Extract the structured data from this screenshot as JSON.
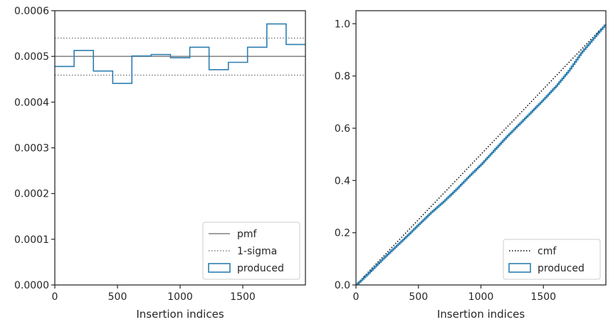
{
  "chart_data": [
    {
      "type": "histogram-step",
      "xlabel": "Insertion indices",
      "ylabel": "",
      "xlim": [
        0,
        2000
      ],
      "ylim": [
        0,
        0.0006
      ],
      "x_ticks": [
        0,
        500,
        1000,
        1500
      ],
      "x_tick_labels": [
        "0",
        "500",
        "1000",
        "1500"
      ],
      "y_ticks": [
        0,
        0.0001,
        0.0002,
        0.0003,
        0.0004,
        0.0005,
        0.0006
      ],
      "y_tick_labels": [
        "0.0000",
        "0.0001",
        "0.0002",
        "0.0003",
        "0.0004",
        "0.0005",
        "0.0006"
      ],
      "legend_position": "bottom-right",
      "reference_lines": [
        {
          "name": "pmf",
          "y": 0.0005,
          "style": "solid",
          "color": "#808080"
        },
        {
          "name": "1-sigma",
          "y": 0.00054,
          "style": "dotted",
          "color": "#808080"
        },
        {
          "name": "1-sigma",
          "y": 0.000459,
          "style": "dotted",
          "color": "#808080",
          "legend": false
        }
      ],
      "series": [
        {
          "name": "produced",
          "color": "#2f7fb0",
          "bin_edges": [
            0,
            154,
            308,
            462,
            615,
            769,
            923,
            1077,
            1231,
            1385,
            1538,
            1692,
            1846,
            2000
          ],
          "values": [
            0.000478,
            0.000513,
            0.000468,
            0.000441,
            0.000501,
            0.000504,
            0.000497,
            0.00052,
            0.000471,
            0.000487,
            0.00052,
            0.000571,
            0.000526
          ]
        }
      ],
      "legend": [
        {
          "label": "pmf",
          "style": "solid-line",
          "color": "#808080"
        },
        {
          "label": "1-sigma",
          "style": "dotted-line",
          "color": "#808080"
        },
        {
          "label": "produced",
          "style": "patch",
          "color": "#2f7fb0"
        }
      ]
    },
    {
      "type": "line",
      "xlabel": "Insertion indices",
      "ylabel": "",
      "xlim": [
        0,
        2000
      ],
      "ylim": [
        0,
        1.05
      ],
      "x_ticks": [
        0,
        500,
        1000,
        1500
      ],
      "x_tick_labels": [
        "0",
        "500",
        "1000",
        "1500"
      ],
      "y_ticks": [
        0,
        0.2,
        0.4,
        0.6,
        0.8,
        1.0
      ],
      "y_tick_labels": [
        "0.0",
        "0.2",
        "0.4",
        "0.6",
        "0.8",
        "1.0"
      ],
      "legend_position": "bottom-right",
      "series": [
        {
          "name": "cmf",
          "style": "dotted",
          "color": "#000000",
          "x": [
            0,
            2000
          ],
          "y": [
            0,
            1.0
          ]
        },
        {
          "name": "produced",
          "style": "step",
          "color": "#2f7fb0",
          "x": [
            0,
            100,
            200,
            300,
            400,
            500,
            600,
            700,
            800,
            900,
            1000,
            1100,
            1200,
            1300,
            1400,
            1500,
            1600,
            1700,
            1800,
            1900,
            2000
          ],
          "y": [
            0,
            0.046,
            0.094,
            0.14,
            0.185,
            0.232,
            0.278,
            0.32,
            0.366,
            0.415,
            0.462,
            0.514,
            0.566,
            0.614,
            0.662,
            0.711,
            0.762,
            0.82,
            0.888,
            0.945,
            1.0
          ]
        }
      ],
      "legend": [
        {
          "label": "cmf",
          "style": "dotted-line",
          "color": "#000000"
        },
        {
          "label": "produced",
          "style": "patch",
          "color": "#2f7fb0"
        }
      ]
    }
  ]
}
